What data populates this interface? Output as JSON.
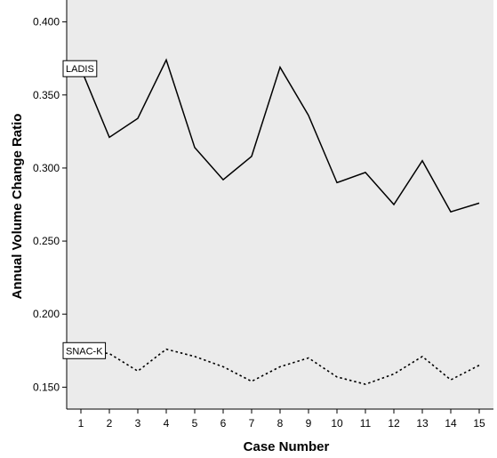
{
  "chart_data": {
    "type": "line",
    "title": "",
    "xlabel": "Case Number",
    "ylabel": "Annual Volume Change Ratio",
    "x": [
      1,
      2,
      3,
      4,
      5,
      6,
      7,
      8,
      9,
      10,
      11,
      12,
      13,
      14,
      15
    ],
    "xlim": [
      0.5,
      15.5
    ],
    "ylim": [
      0.135,
      0.415
    ],
    "yticks": [
      "0.150",
      "0.200",
      "0.250",
      "0.300",
      "0.350",
      "0.400"
    ],
    "grid": false,
    "legend": "none",
    "background": "#ebebeb",
    "series": [
      {
        "name": "LADIS",
        "style": "solid",
        "color": "#000000",
        "values": [
          0.368,
          0.321,
          0.334,
          0.374,
          0.314,
          0.292,
          0.308,
          0.369,
          0.336,
          0.29,
          0.297,
          0.275,
          0.305,
          0.27,
          0.276
        ]
      },
      {
        "name": "SNAC-K",
        "style": "dotted",
        "color": "#000000",
        "values": [
          0.175,
          0.173,
          0.161,
          0.176,
          0.171,
          0.164,
          0.154,
          0.164,
          0.17,
          0.157,
          0.152,
          0.159,
          0.171,
          0.155,
          0.165
        ]
      }
    ]
  }
}
